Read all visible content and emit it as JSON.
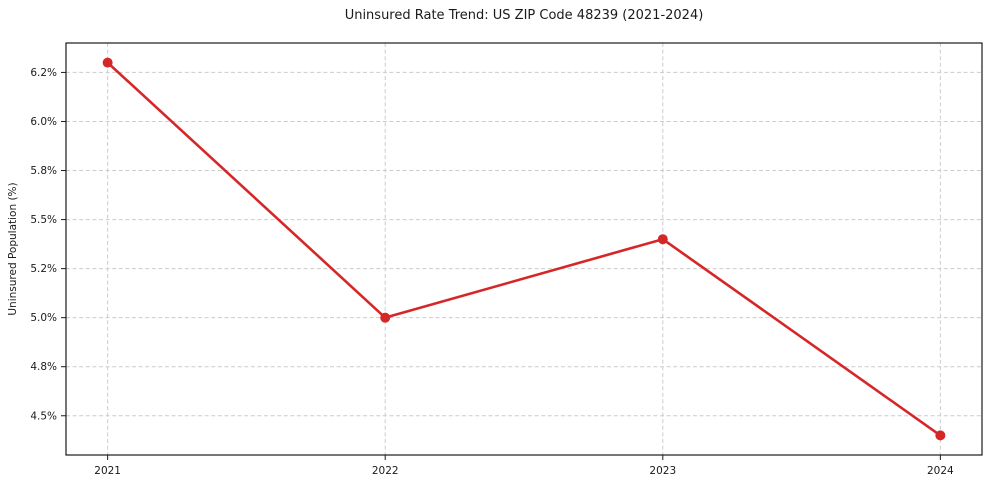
{
  "chart_data": {
    "type": "line",
    "title": "Uninsured Rate Trend: US ZIP Code 48239 (2021-2024)",
    "xlabel": "",
    "ylabel": "Uninsured Population (%)",
    "x": [
      2021,
      2022,
      2023,
      2024
    ],
    "series": [
      {
        "name": "Uninsured rate",
        "values": [
          6.3,
          5.0,
          5.4,
          4.4
        ],
        "color": "#d62728",
        "marker": "circle",
        "line_width": 2.6,
        "marker_radius": 5
      }
    ],
    "x_ticks": [
      {
        "value": 2021,
        "label": "2021"
      },
      {
        "value": 2022,
        "label": "2022"
      },
      {
        "value": 2023,
        "label": "2023"
      },
      {
        "value": 2024,
        "label": "2024"
      }
    ],
    "y_ticks": [
      {
        "value": 6.25,
        "label": "6.2%"
      },
      {
        "value": 6.0,
        "label": "6.0%"
      },
      {
        "value": 5.75,
        "label": "5.8%"
      },
      {
        "value": 5.5,
        "label": "5.5%"
      },
      {
        "value": 5.25,
        "label": "5.2%"
      },
      {
        "value": 5.0,
        "label": "5.0%"
      },
      {
        "value": 4.75,
        "label": "4.8%"
      },
      {
        "value": 4.5,
        "label": "4.5%"
      }
    ],
    "xlim": [
      2020.85,
      2024.15
    ],
    "ylim": [
      4.3,
      6.4
    ],
    "grid": true,
    "grid_style": "dashed",
    "grid_color": "#cccccc",
    "background_color": "#ffffff",
    "frame_color": "#1a1a1a",
    "legend": "none"
  }
}
